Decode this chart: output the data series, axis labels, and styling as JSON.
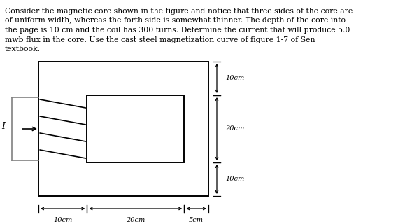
{
  "text_line1": "Consider the magnetic core shown in the figure and notice that three sides of the core are",
  "text_line2": "of uniform width, whereas the forth side is somewhat thinner. The depth of the core into",
  "text_line3": "the page is 10 cm and the coil has 300 turns. Determine the current that will produce 5.0",
  "text_line4": "mwb flux in the core. Use the cast steel magnetization curve of figure 1-7 of Sen",
  "text_line5": "textbook.",
  "fig_width": 5.69,
  "fig_height": 3.17,
  "dpi": 100,
  "text_color": "#000000",
  "bg_color": "#ffffff",
  "dim_top": "10cm",
  "dim_middle": "20cm",
  "dim_bottom": "10cm",
  "dim_left": "10cm",
  "dim_center": "20cm",
  "dim_right": "5cm",
  "current_label": "I"
}
